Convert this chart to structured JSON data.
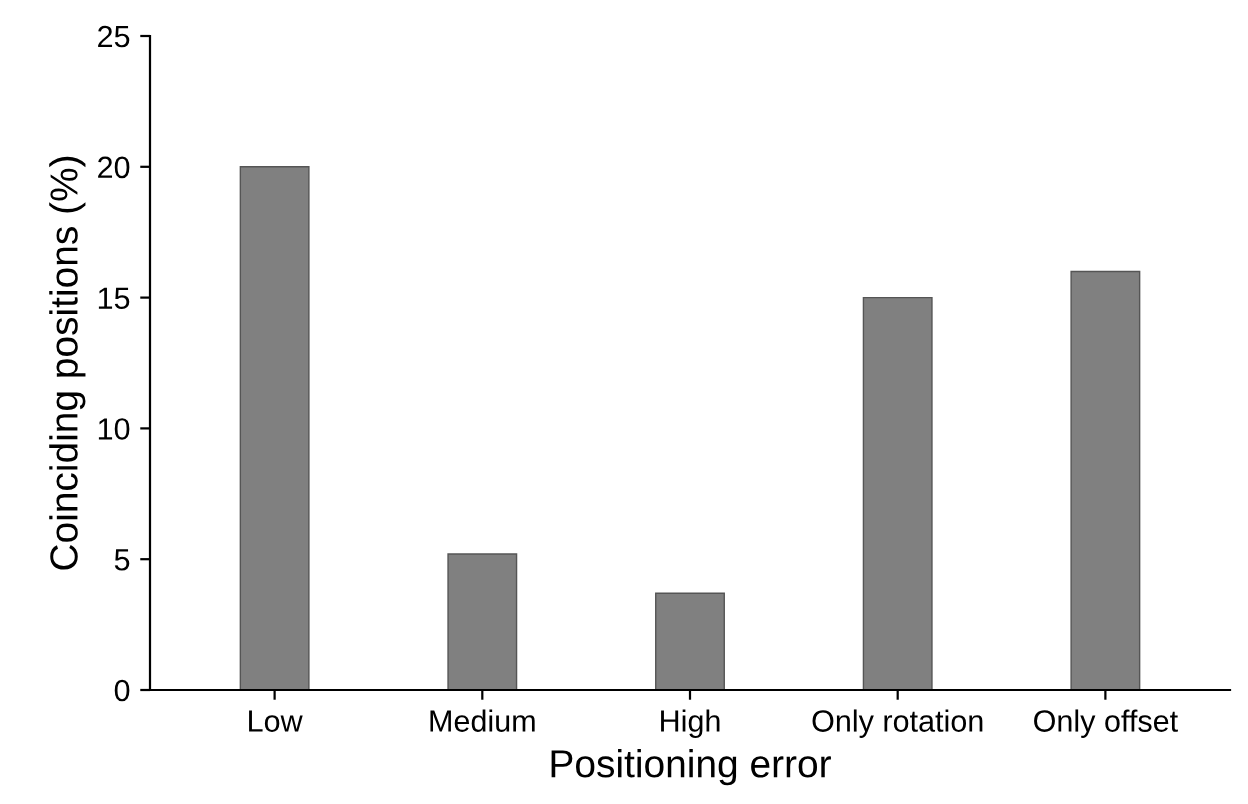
{
  "chart_data": {
    "type": "bar",
    "xlabel": "Positioning error",
    "ylabel": "Coinciding positions (%)",
    "categories": [
      "Low",
      "Medium",
      "High",
      "Only rotation",
      "Only offset"
    ],
    "values": [
      20,
      5.2,
      3.7,
      15,
      16
    ],
    "color": "#808080",
    "ylim": [
      0,
      25
    ],
    "yticks": [
      0,
      5,
      10,
      15,
      20,
      25
    ],
    "grid": false
  }
}
